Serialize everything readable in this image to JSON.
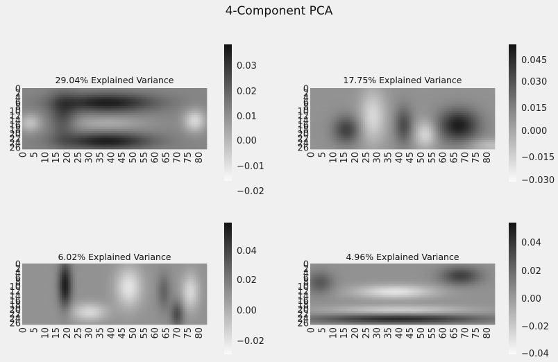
{
  "figure": {
    "title": "4-Component PCA"
  },
  "chart_data": [
    {
      "type": "heatmap",
      "title": "29.04% Explained Variance",
      "x_ticks": [
        "0",
        "5",
        "10",
        "15",
        "20",
        "25",
        "30",
        "35",
        "40",
        "45",
        "50",
        "55",
        "60",
        "65",
        "70",
        "75",
        "80"
      ],
      "y_ticks": [
        "0",
        "2",
        "4",
        "6",
        "8",
        "10",
        "12",
        "14",
        "16",
        "18",
        "20",
        "22",
        "24",
        "26"
      ],
      "colorbar_ticks": [
        "0.03",
        "0.02",
        "0.01",
        "0.00",
        "−0.01",
        "−0.02"
      ],
      "vmin": -0.025,
      "vmax": 0.038,
      "colormap": "grayscale (white = low, black = high)"
    },
    {
      "type": "heatmap",
      "title": "17.75% Explained Variance",
      "x_ticks": [
        "0",
        "5",
        "10",
        "15",
        "20",
        "25",
        "30",
        "35",
        "40",
        "45",
        "50",
        "55",
        "60",
        "65",
        "70",
        "75",
        "80"
      ],
      "y_ticks": [
        "0",
        "2",
        "4",
        "6",
        "8",
        "10",
        "12",
        "14",
        "16",
        "18",
        "20",
        "22",
        "24",
        "26"
      ],
      "colorbar_ticks": [
        "0.045",
        "0.030",
        "0.015",
        "0.000",
        "−0.015",
        "−0.030"
      ],
      "vmin": -0.035,
      "vmax": 0.052,
      "colormap": "grayscale (white = low, black = high)"
    },
    {
      "type": "heatmap",
      "title": "6.02% Explained Variance",
      "x_ticks": [
        "0",
        "5",
        "10",
        "15",
        "20",
        "25",
        "30",
        "35",
        "40",
        "45",
        "50",
        "55",
        "60",
        "65",
        "70",
        "75",
        "80"
      ],
      "y_ticks": [
        "0",
        "2",
        "4",
        "6",
        "8",
        "10",
        "12",
        "14",
        "16",
        "18",
        "20",
        "22",
        "24",
        "26"
      ],
      "colorbar_ticks": [
        "0.04",
        "0.02",
        "0.00",
        "−0.02"
      ],
      "vmin": -0.03,
      "vmax": 0.058,
      "colormap": "grayscale (white = low, black = high)"
    },
    {
      "type": "heatmap",
      "title": "4.96% Explained Variance",
      "x_ticks": [
        "0",
        "5",
        "10",
        "15",
        "20",
        "25",
        "30",
        "35",
        "40",
        "45",
        "50",
        "55",
        "60",
        "65",
        "70",
        "75",
        "80"
      ],
      "y_ticks": [
        "0",
        "2",
        "4",
        "6",
        "8",
        "10",
        "12",
        "14",
        "16",
        "18",
        "20",
        "22",
        "24",
        "26"
      ],
      "colorbar_ticks": [
        "0.04",
        "0.02",
        "0.00",
        "−0.02",
        "−0.04"
      ],
      "vmin": -0.045,
      "vmax": 0.055,
      "colormap": "grayscale (white = low, black = high)"
    }
  ]
}
